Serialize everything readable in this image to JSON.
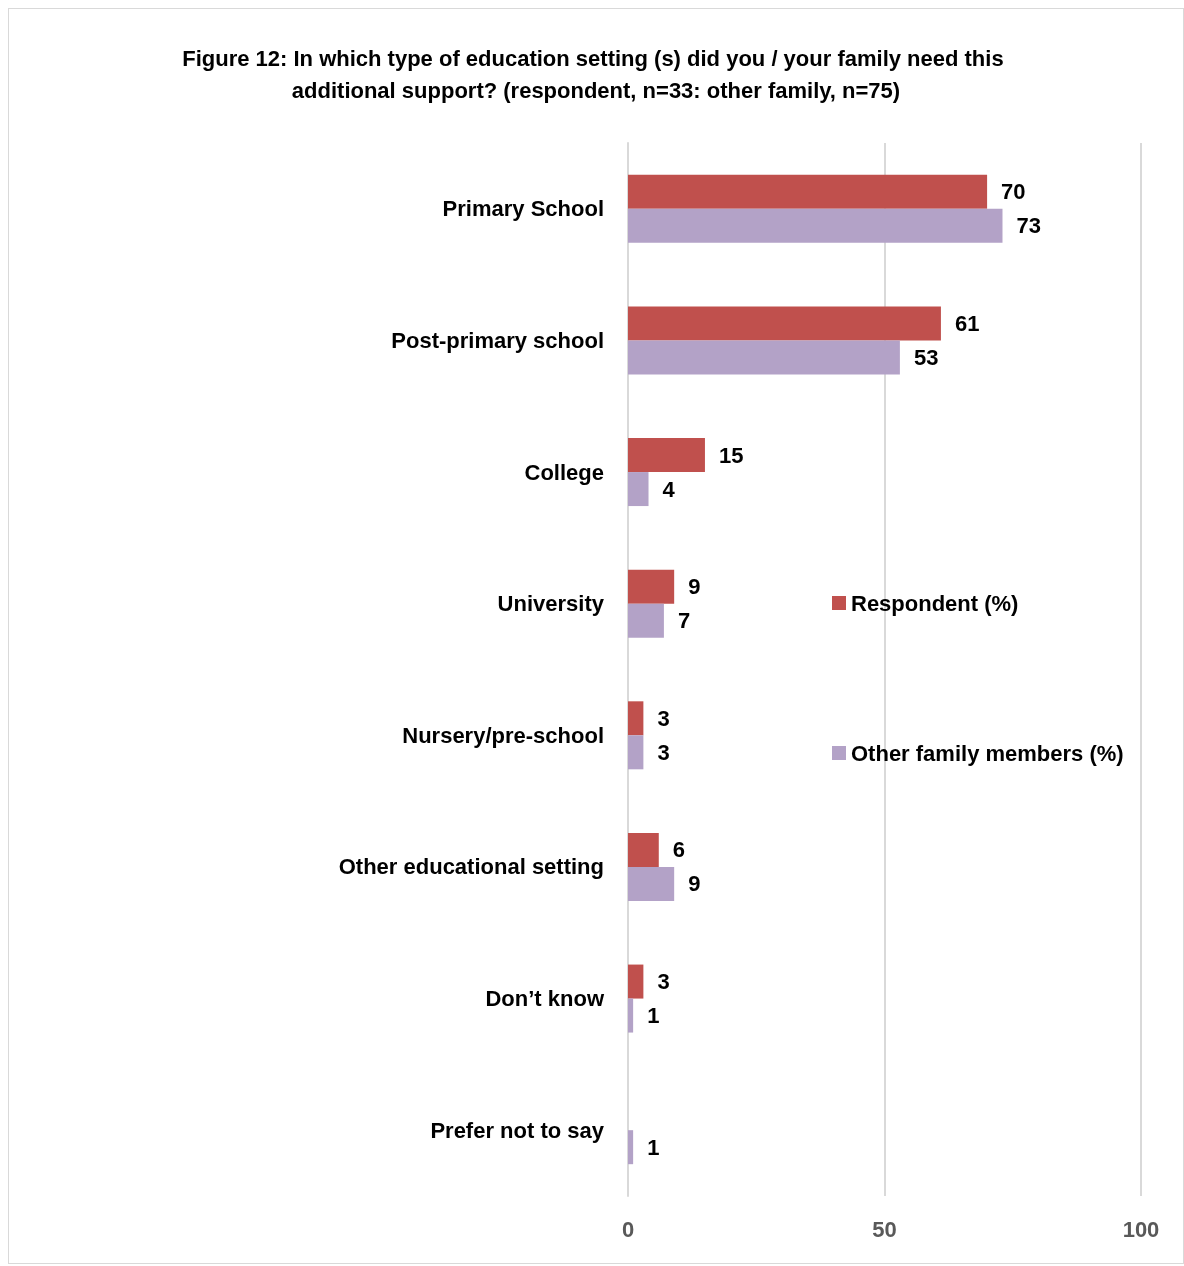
{
  "chart_data": {
    "type": "bar",
    "orientation": "horizontal",
    "title": "Figure 12: In which type of education setting (s) did you / your family need this additional support? (respondent, n=33: other family, n=75)",
    "categories": [
      "Primary School",
      "Post-primary school",
      "College",
      "University",
      "Nursery/pre-school",
      "Other educational setting",
      "Don’t know",
      "Prefer not to say"
    ],
    "series": [
      {
        "name": "Respondent (%)",
        "color": "#c0504d",
        "values": [
          70,
          61,
          15,
          9,
          3,
          6,
          3,
          null
        ]
      },
      {
        "name": "Other family members (%)",
        "color": "#b3a2c7",
        "values": [
          73,
          53,
          4,
          7,
          3,
          9,
          1,
          1
        ]
      }
    ],
    "xlim": [
      0,
      100
    ],
    "xticks": [
      0,
      50,
      100
    ],
    "grid": "x",
    "legend": "right",
    "data_labels": true
  }
}
